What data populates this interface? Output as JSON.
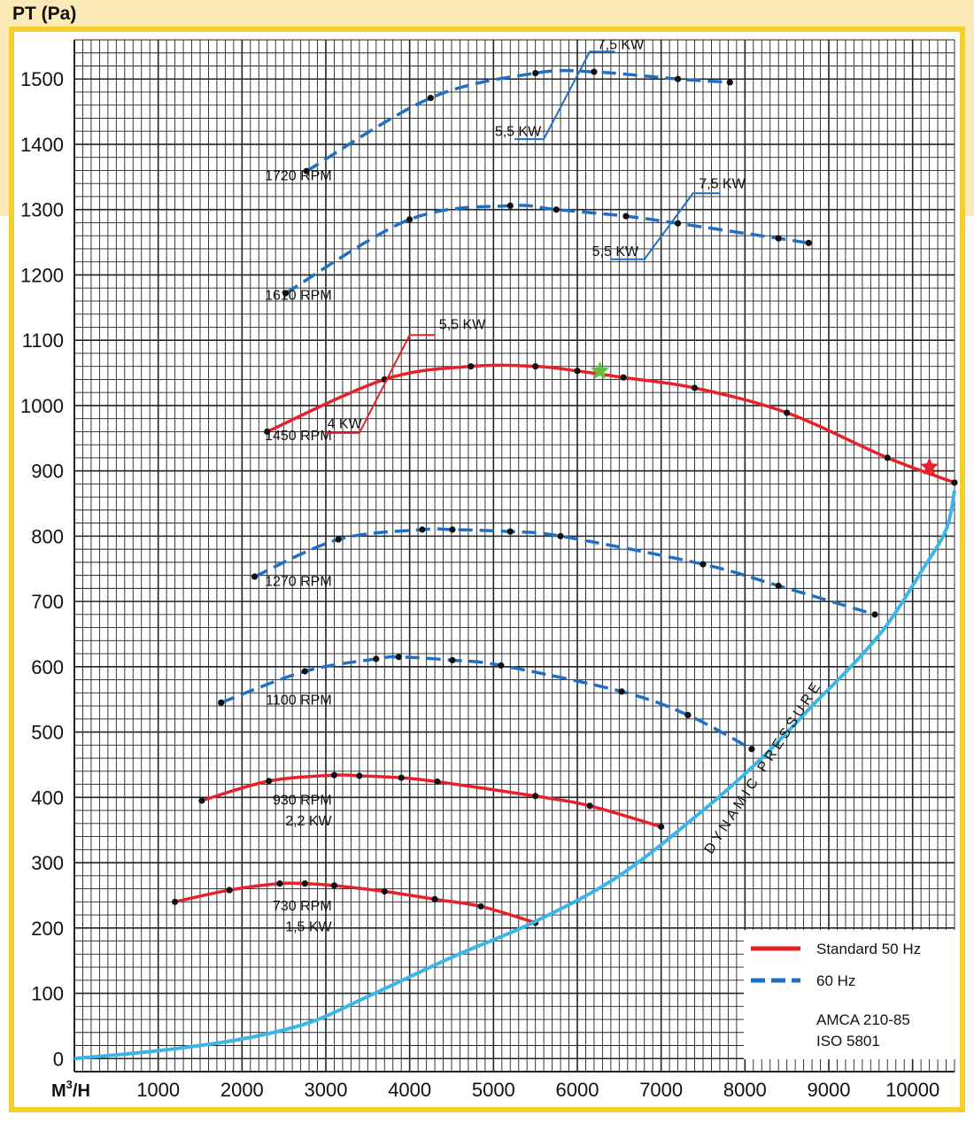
{
  "colors": {
    "frame": "#f5cf2c",
    "top_band": "#fbe9b8",
    "red": "#e8202a",
    "blue": "#1f6fc4",
    "dynamic": "#3cb6e6",
    "grid": "#222222",
    "green_star": "#5ec23a"
  },
  "chart_data": {
    "type": "line",
    "ylabel": "PT (Pa)",
    "xlabel": "M 3 /H",
    "xlim": [
      0,
      10500
    ],
    "ylim": [
      -20,
      1560
    ],
    "x_ticks": [
      "1000",
      "2000",
      "3000",
      "4000",
      "5000",
      "6000",
      "7000",
      "8000",
      "9000",
      "10000"
    ],
    "y_ticks": [
      "0",
      "100",
      "200",
      "300",
      "400",
      "500",
      "600",
      "700",
      "800",
      "900",
      "1000",
      "1100",
      "1200",
      "1300",
      "1400",
      "1500"
    ],
    "grid": true,
    "series": [
      {
        "name": "730 RPM",
        "label2": "1,5 KW",
        "style": "solid",
        "color": "red",
        "label_at": [
          1000,
          235
        ],
        "label2_at": [
          1000,
          203
        ],
        "x": [
          1200,
          1850,
          2450,
          2750,
          3100,
          3700,
          4300,
          4850,
          5500
        ],
        "y": [
          240,
          258,
          268,
          268,
          265,
          256,
          244,
          233,
          208
        ]
      },
      {
        "name": "930 RPM",
        "label2": "2,2 KW",
        "style": "solid",
        "color": "red",
        "label_at": [
          1000,
          397
        ],
        "label2_at": [
          1000,
          365
        ],
        "x": [
          1520,
          2320,
          3100,
          3400,
          3900,
          4330,
          5500,
          6150,
          7000
        ],
        "y": [
          395,
          425,
          434,
          433,
          430,
          424,
          402,
          387,
          355
        ]
      },
      {
        "name": "1100 RPM",
        "style": "dashed",
        "color": "blue",
        "label_at": [
          1000,
          550
        ],
        "x": [
          1750,
          2750,
          3600,
          3870,
          4510,
          5090,
          6530,
          7320,
          8080
        ],
        "y": [
          545,
          593,
          612,
          615,
          610,
          602,
          562,
          526,
          474
        ]
      },
      {
        "name": "1270 RPM",
        "style": "dashed",
        "color": "blue",
        "label_at": [
          1000,
          732
        ],
        "x": [
          2150,
          3150,
          4150,
          4510,
          5200,
          5800,
          7500,
          8400,
          9550
        ],
        "y": [
          738,
          795,
          810,
          810,
          807,
          800,
          757,
          724,
          680
        ]
      },
      {
        "name": "1450 RPM",
        "style": "solid",
        "color": "red",
        "label_at": [
          1000,
          955
        ],
        "x": [
          2300,
          3700,
          4730,
          5500,
          6000,
          6550,
          7400,
          8500,
          9700,
          10500
        ],
        "y": [
          960,
          1040,
          1060,
          1060,
          1053,
          1043,
          1027,
          989,
          920,
          882
        ]
      },
      {
        "name": "1610 RPM",
        "style": "dashed",
        "color": "blue",
        "label_at": [
          1000,
          1170
        ],
        "x": [
          2520,
          4000,
          5200,
          5750,
          6580,
          7200,
          8400,
          8760
        ],
        "y": [
          1172,
          1285,
          1306,
          1300,
          1290,
          1279,
          1256,
          1249
        ]
      },
      {
        "name": "1720 RPM",
        "style": "dashed",
        "color": "blue",
        "label_at": [
          1000,
          1353
        ],
        "x": [
          2770,
          4250,
          5500,
          6200,
          7200,
          7820
        ],
        "y": [
          1359,
          1471,
          1509,
          1511,
          1500,
          1495
        ]
      },
      {
        "name": "DYNAMIC PRESSURE",
        "style": "solid",
        "color": "dynamic",
        "x": [
          0,
          1000,
          2000,
          2800,
          3500,
          4500,
          5500,
          6500,
          7500,
          8200,
          8800,
          9300,
          9700,
          10100,
          10400,
          10500
        ],
        "y": [
          0,
          12,
          30,
          55,
          95,
          155,
          210,
          280,
          380,
          460,
          540,
          605,
          665,
          745,
          810,
          870
        ]
      }
    ],
    "power_annotations": [
      {
        "lower": "4 KW",
        "upper": "5,5 KW",
        "color": "red",
        "lower_at": [
          3430,
          965
        ],
        "upper_at": [
          4350,
          1117
        ],
        "line": [
          [
            3000,
            958
          ],
          [
            3400,
            958
          ],
          [
            4000,
            1108
          ],
          [
            4300,
            1108
          ]
        ]
      },
      {
        "lower": "5,5 KW",
        "upper": "7,5 KW",
        "color": "blue",
        "lower_at": [
          6730,
          1229
        ],
        "upper_at": [
          7450,
          1333
        ],
        "line": [
          [
            6400,
            1224
          ],
          [
            6800,
            1224
          ],
          [
            7380,
            1325
          ],
          [
            7700,
            1325
          ]
        ]
      },
      {
        "lower": "5,5 KW",
        "upper": "7,5 KW",
        "color": "blue",
        "lower_at": [
          5570,
          1413
        ],
        "upper_at": [
          6240,
          1546
        ],
        "line": [
          [
            5250,
            1408
          ],
          [
            5600,
            1408
          ],
          [
            6150,
            1542
          ],
          [
            6450,
            1542
          ]
        ]
      }
    ],
    "markers": [
      {
        "type": "green-star",
        "x": 6270,
        "y": 1053
      },
      {
        "type": "red-star",
        "x": 10200,
        "y": 906
      }
    ],
    "dynamic_label": "DYNAMIC PRESSURE",
    "legend": {
      "position": "bottom-right",
      "items": [
        {
          "label": "Standard 50 Hz",
          "style": "solid",
          "color": "red"
        },
        {
          "label": "60 Hz",
          "style": "dashed",
          "color": "blue"
        }
      ]
    },
    "standards": [
      "AMCA 210-85",
      "ISO 5801"
    ]
  }
}
